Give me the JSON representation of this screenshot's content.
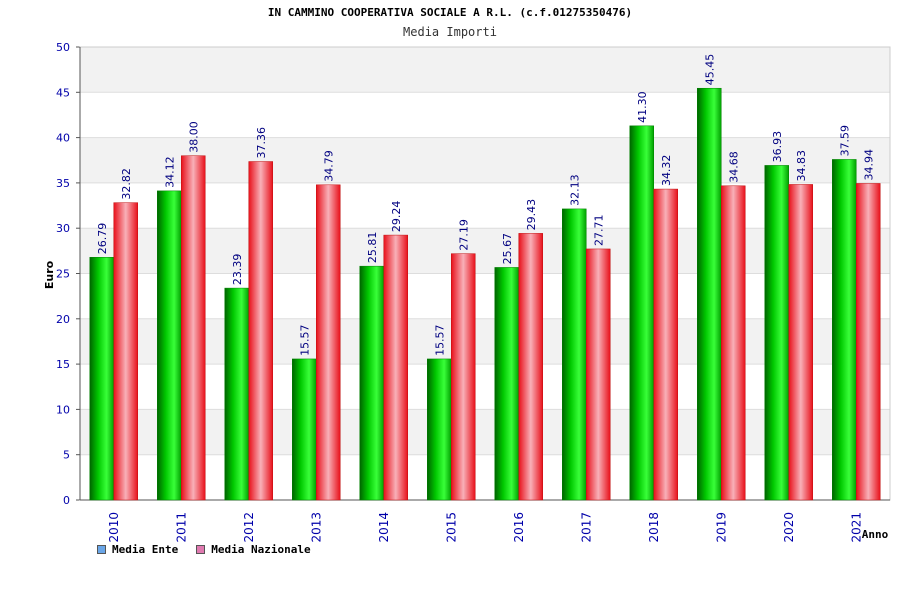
{
  "chart_data": {
    "type": "bar",
    "title": "IN CAMMINO COOPERATIVA SOCIALE A R.L. (c.f.01275350476)",
    "subtitle": "Media Importi",
    "xlabel": "Anno",
    "ylabel": "Euro",
    "ylim": [
      0,
      50
    ],
    "yticks": [
      "0",
      "5",
      "10",
      "15",
      "20",
      "25",
      "30",
      "35",
      "40",
      "45",
      "50"
    ],
    "categories": [
      "2010",
      "2011",
      "2012",
      "2013",
      "2014",
      "2015",
      "2016",
      "2017",
      "2018",
      "2019",
      "2020",
      "2021"
    ],
    "series": [
      {
        "name": "Media Ente",
        "values": [
          26.79,
          34.12,
          23.39,
          15.57,
          25.81,
          15.57,
          25.67,
          32.13,
          41.3,
          45.45,
          36.93,
          37.59
        ],
        "labels": [
          "26.79",
          "34.12",
          "23.39",
          "15.57",
          "25.81",
          "15.57",
          "25.67",
          "32.13",
          "41.30",
          "45.45",
          "36.93",
          "37.59"
        ],
        "color": "#00b400"
      },
      {
        "name": "Media Nazionale",
        "values": [
          32.82,
          38.0,
          37.36,
          34.79,
          29.24,
          27.19,
          29.43,
          27.71,
          34.32,
          34.68,
          34.83,
          34.94
        ],
        "labels": [
          "32.82",
          "38.00",
          "37.36",
          "34.79",
          "29.24",
          "27.19",
          "29.43",
          "27.71",
          "34.32",
          "34.68",
          "34.83",
          "34.94"
        ],
        "color": "#e8202a"
      }
    ],
    "legend_swatch_colors": [
      "#6aa6e8",
      "#e07ab0"
    ],
    "grid": true,
    "legend": "bottom-left"
  }
}
